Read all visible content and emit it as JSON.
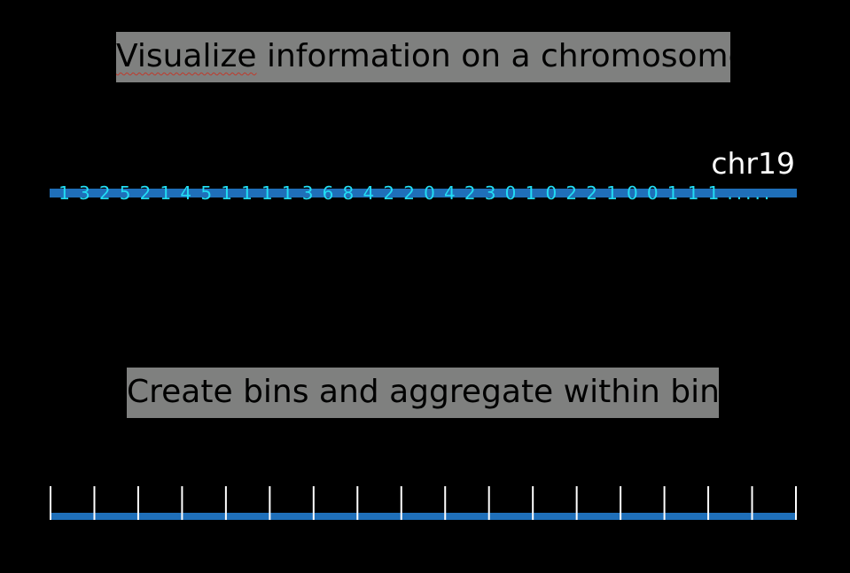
{
  "title_top": {
    "word_flagged": "Visualize",
    "rest": " information on a chromosome"
  },
  "chromosome_label": "chr19",
  "counts": [
    1,
    3,
    2,
    5,
    2,
    1,
    4,
    5,
    1,
    1,
    1,
    1,
    3,
    6,
    8,
    4,
    2,
    2,
    0,
    4,
    2,
    3,
    0,
    1,
    0,
    2,
    2,
    1,
    0,
    0,
    1,
    1,
    1
  ],
  "continuation": ".....",
  "title_bottom": "Create bins and aggregate within bins",
  "bins": {
    "count": 17
  },
  "colors": {
    "background": "#000000",
    "title_box": "#7f807f",
    "bar": "#1f6fb9",
    "counts_text": "#22ddf5",
    "label_text": "#ffffff",
    "bin_ticks": "#ffffff"
  }
}
